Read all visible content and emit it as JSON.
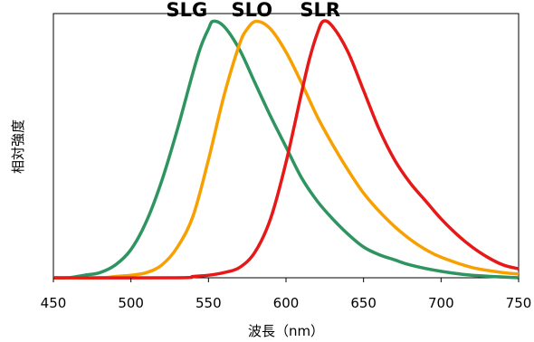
{
  "chart_data": {
    "type": "line",
    "title": "",
    "xlabel": "波長（nm）",
    "ylabel": "相対強度",
    "xlim": [
      450,
      750
    ],
    "ylim": [
      0,
      1.03
    ],
    "x_ticks": [
      450,
      500,
      550,
      600,
      650,
      700,
      750
    ],
    "y_ticks_shown": false,
    "grid": false,
    "series": [
      {
        "name": "SLG",
        "color": "#2e9460",
        "points": [
          [
            450,
            0.0
          ],
          [
            460,
            0.0
          ],
          [
            470,
            0.01
          ],
          [
            480,
            0.02
          ],
          [
            490,
            0.05
          ],
          [
            500,
            0.11
          ],
          [
            510,
            0.22
          ],
          [
            520,
            0.38
          ],
          [
            530,
            0.58
          ],
          [
            540,
            0.8
          ],
          [
            545,
            0.9
          ],
          [
            550,
            0.97
          ],
          [
            553,
            1.0
          ],
          [
            560,
            0.98
          ],
          [
            570,
            0.89
          ],
          [
            580,
            0.76
          ],
          [
            590,
            0.63
          ],
          [
            600,
            0.51
          ],
          [
            610,
            0.39
          ],
          [
            620,
            0.3
          ],
          [
            630,
            0.23
          ],
          [
            640,
            0.17
          ],
          [
            650,
            0.12
          ],
          [
            660,
            0.09
          ],
          [
            670,
            0.07
          ],
          [
            680,
            0.05
          ],
          [
            700,
            0.025
          ],
          [
            720,
            0.01
          ],
          [
            750,
            0.0
          ]
        ]
      },
      {
        "name": "SLO",
        "color": "#f7a000",
        "points": [
          [
            450,
            0.0
          ],
          [
            480,
            0.0
          ],
          [
            490,
            0.005
          ],
          [
            500,
            0.01
          ],
          [
            510,
            0.02
          ],
          [
            520,
            0.05
          ],
          [
            530,
            0.12
          ],
          [
            540,
            0.24
          ],
          [
            550,
            0.46
          ],
          [
            560,
            0.71
          ],
          [
            570,
            0.91
          ],
          [
            575,
            0.97
          ],
          [
            581,
            1.0
          ],
          [
            590,
            0.97
          ],
          [
            600,
            0.88
          ],
          [
            610,
            0.76
          ],
          [
            620,
            0.63
          ],
          [
            630,
            0.52
          ],
          [
            640,
            0.42
          ],
          [
            650,
            0.33
          ],
          [
            660,
            0.26
          ],
          [
            670,
            0.2
          ],
          [
            680,
            0.15
          ],
          [
            690,
            0.11
          ],
          [
            700,
            0.08
          ],
          [
            720,
            0.04
          ],
          [
            740,
            0.02
          ],
          [
            750,
            0.015
          ]
        ]
      },
      {
        "name": "SLR",
        "color": "#e61818",
        "points": [
          [
            450,
            0.0
          ],
          [
            530,
            0.0
          ],
          [
            540,
            0.005
          ],
          [
            550,
            0.01
          ],
          [
            560,
            0.02
          ],
          [
            570,
            0.04
          ],
          [
            580,
            0.1
          ],
          [
            590,
            0.23
          ],
          [
            600,
            0.45
          ],
          [
            610,
            0.72
          ],
          [
            615,
            0.85
          ],
          [
            620,
            0.95
          ],
          [
            624,
            1.0
          ],
          [
            630,
            0.98
          ],
          [
            640,
            0.88
          ],
          [
            650,
            0.73
          ],
          [
            660,
            0.58
          ],
          [
            670,
            0.46
          ],
          [
            680,
            0.37
          ],
          [
            690,
            0.3
          ],
          [
            700,
            0.23
          ],
          [
            710,
            0.17
          ],
          [
            720,
            0.12
          ],
          [
            730,
            0.08
          ],
          [
            740,
            0.05
          ],
          [
            750,
            0.035
          ]
        ]
      }
    ],
    "labels": [
      {
        "text": "SLG",
        "x": 536,
        "y": 1.02
      },
      {
        "text": "SLO",
        "x": 578,
        "y": 1.02
      },
      {
        "text": "SLR",
        "x": 622,
        "y": 1.02
      }
    ]
  }
}
